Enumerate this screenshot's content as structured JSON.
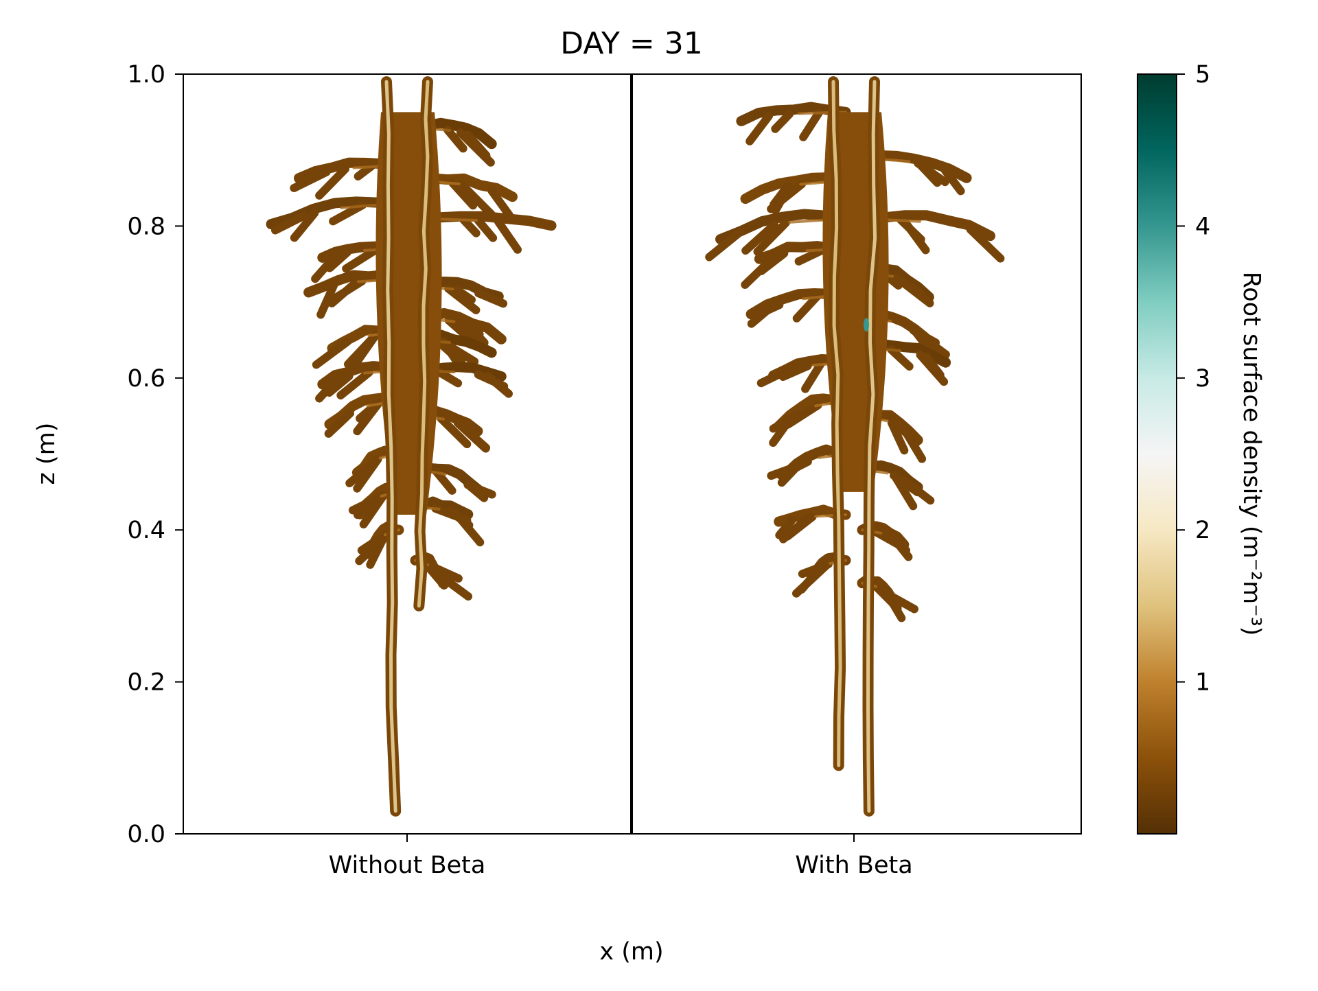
{
  "chart_data": {
    "type": "heatmap",
    "title": "DAY = 31",
    "xlabel": "x (m)",
    "ylabel": "z (m)",
    "ylim": [
      0.0,
      1.0
    ],
    "yticks": [
      "0.0",
      "0.2",
      "0.4",
      "0.6",
      "0.8",
      "1.0"
    ],
    "categories": [
      "Without Beta",
      "With Beta"
    ],
    "colorbar": {
      "label": "Root surface density (m⁻²m⁻³)",
      "range": [
        0,
        5
      ],
      "ticks": [
        "1",
        "2",
        "3",
        "4",
        "5"
      ],
      "colormap": "BrBG",
      "colors": [
        "#543005",
        "#8c510a",
        "#bf812d",
        "#dfc27d",
        "#f6e8c3",
        "#f5f5f5",
        "#c7eae5",
        "#80cdc1",
        "#35978f",
        "#01665e",
        "#003c30"
      ]
    },
    "series": [
      {
        "name": "Without Beta",
        "root_depth_max": 0.97,
        "root_depth_min": 0.03,
        "main_axes": [
          {
            "z_top": 0.99,
            "z_bottom": 0.03,
            "density": 1.7
          },
          {
            "z_top": 0.99,
            "z_bottom": 0.3,
            "density": 1.6
          }
        ],
        "laterals": [
          {
            "z": 0.93,
            "side": "right",
            "length": 0.55,
            "density": 0.2
          },
          {
            "z": 0.88,
            "side": "left",
            "length": 0.72,
            "density": 0.3
          },
          {
            "z": 0.86,
            "side": "right",
            "length": 0.7,
            "density": 0.35
          },
          {
            "z": 0.83,
            "side": "left",
            "length": 0.92,
            "density": 0.25
          },
          {
            "z": 0.81,
            "side": "right",
            "length": 0.98,
            "density": 0.3
          },
          {
            "z": 0.77,
            "side": "left",
            "length": 0.55,
            "density": 0.3
          },
          {
            "z": 0.73,
            "side": "left",
            "length": 0.65,
            "density": 0.3
          },
          {
            "z": 0.72,
            "side": "right",
            "length": 0.6,
            "density": 0.25
          },
          {
            "z": 0.68,
            "side": "right",
            "length": 0.62,
            "density": 0.3
          },
          {
            "z": 0.66,
            "side": "left",
            "length": 0.48,
            "density": 0.35
          },
          {
            "z": 0.65,
            "side": "right",
            "length": 0.55,
            "density": 0.2
          },
          {
            "z": 0.61,
            "side": "left",
            "length": 0.55,
            "density": 0.3
          },
          {
            "z": 0.61,
            "side": "right",
            "length": 0.62,
            "density": 0.2
          },
          {
            "z": 0.57,
            "side": "left",
            "length": 0.5,
            "density": 0.35
          },
          {
            "z": 0.55,
            "side": "right",
            "length": 0.45,
            "density": 0.3
          },
          {
            "z": 0.5,
            "side": "left",
            "length": 0.3,
            "density": 0.35
          },
          {
            "z": 0.48,
            "side": "right",
            "length": 0.48,
            "density": 0.25
          },
          {
            "z": 0.45,
            "side": "left",
            "length": 0.28,
            "density": 0.35
          },
          {
            "z": 0.43,
            "side": "right",
            "length": 0.38,
            "density": 0.25
          },
          {
            "z": 0.4,
            "side": "left",
            "length": 0.22,
            "density": 0.35
          },
          {
            "z": 0.36,
            "side": "right",
            "length": 0.2,
            "density": 0.3
          }
        ]
      },
      {
        "name": "With Beta",
        "root_depth_max": 0.97,
        "root_depth_min": 0.03,
        "hotspot": {
          "z": 0.67,
          "value": 4.0
        },
        "main_axes": [
          {
            "z_top": 0.99,
            "z_bottom": 0.09,
            "density": 1.6
          },
          {
            "z_top": 0.99,
            "z_bottom": 0.03,
            "density": 1.7
          }
        ],
        "laterals": [
          {
            "z": 0.95,
            "side": "left",
            "length": 0.75,
            "density": 0.25
          },
          {
            "z": 0.89,
            "side": "right",
            "length": 0.75,
            "density": 0.3
          },
          {
            "z": 0.86,
            "side": "left",
            "length": 0.72,
            "density": 0.35
          },
          {
            "z": 0.81,
            "side": "left",
            "length": 0.9,
            "density": 0.25
          },
          {
            "z": 0.81,
            "side": "right",
            "length": 0.92,
            "density": 0.3
          },
          {
            "z": 0.77,
            "side": "left",
            "length": 0.62,
            "density": 0.3
          },
          {
            "z": 0.74,
            "side": "right",
            "length": 0.48,
            "density": 0.25
          },
          {
            "z": 0.71,
            "side": "left",
            "length": 0.68,
            "density": 0.3
          },
          {
            "z": 0.68,
            "side": "right",
            "length": 0.45,
            "density": 0.3
          },
          {
            "z": 0.64,
            "side": "right",
            "length": 0.6,
            "density": 0.2
          },
          {
            "z": 0.62,
            "side": "left",
            "length": 0.52,
            "density": 0.3
          },
          {
            "z": 0.57,
            "side": "left",
            "length": 0.48,
            "density": 0.35
          },
          {
            "z": 0.55,
            "side": "right",
            "length": 0.4,
            "density": 0.3
          },
          {
            "z": 0.5,
            "side": "left",
            "length": 0.42,
            "density": 0.3
          },
          {
            "z": 0.48,
            "side": "right",
            "length": 0.4,
            "density": 0.25
          },
          {
            "z": 0.42,
            "side": "left",
            "length": 0.48,
            "density": 0.35
          },
          {
            "z": 0.4,
            "side": "right",
            "length": 0.3,
            "density": 0.3
          },
          {
            "z": 0.36,
            "side": "left",
            "length": 0.25,
            "density": 0.3
          },
          {
            "z": 0.33,
            "side": "right",
            "length": 0.22,
            "density": 0.3
          }
        ]
      }
    ]
  }
}
